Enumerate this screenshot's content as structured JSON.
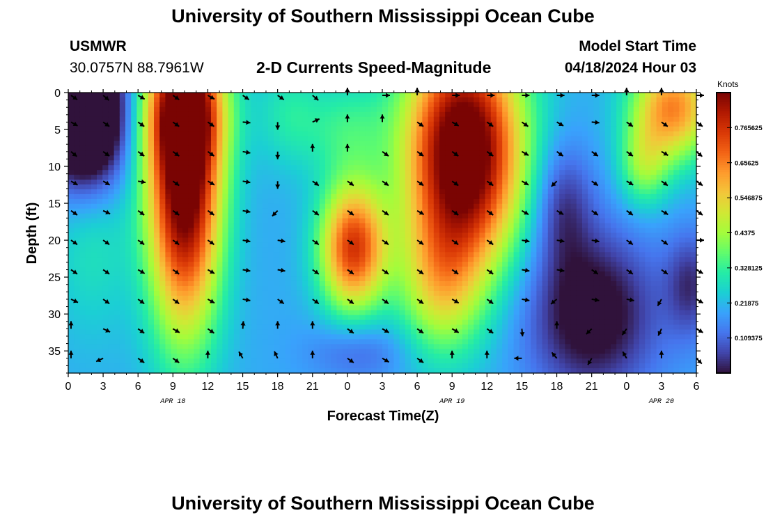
{
  "page": {
    "title": "University of Southern Mississippi Ocean Cube",
    "footer_title": "University of Southern Mississippi Ocean Cube"
  },
  "station": {
    "id": "USMWR",
    "coords": "30.0757N  88.7961W"
  },
  "model": {
    "start_label": "Model Start Time",
    "start_value": "04/18/2024 Hour 03"
  },
  "chart_data": {
    "type": "heatmap",
    "title": "2-D Currents Speed-Magnitude",
    "xlabel": "Forecast Time(Z)",
    "ylabel": "Depth (ft)",
    "x_ticks": [
      "0",
      "3",
      "6",
      "9",
      "12",
      "15",
      "18",
      "21",
      "0",
      "3",
      "6",
      "9",
      "12",
      "15",
      "18",
      "21",
      "0",
      "3",
      "6"
    ],
    "x_dates": [
      {
        "label": "APR 18",
        "hour_index": 9
      },
      {
        "label": "APR 19",
        "hour_index": 33
      },
      {
        "label": "APR 20",
        "hour_index": 51
      }
    ],
    "xlim_hours": [
      0,
      54
    ],
    "ylim_ft": [
      0,
      38
    ],
    "y_ticks": [
      "0",
      "5",
      "10",
      "15",
      "20",
      "25",
      "30",
      "35"
    ],
    "colorbar": {
      "title": "Knots",
      "tick_labels": [
        "0.765625",
        "0.65625",
        "0.546875",
        "0.4375",
        "0.328125",
        "0.21875",
        "0.109375"
      ],
      "tick_values": [
        0.765625,
        0.65625,
        0.546875,
        0.4375,
        0.328125,
        0.21875,
        0.109375
      ],
      "range": [
        0,
        0.875
      ],
      "colors": [
        "#30123b",
        "#4145ab",
        "#4675ed",
        "#39a2fc",
        "#1bcfd4",
        "#24eca6",
        "#61fc6c",
        "#a4fc3b",
        "#d1e834",
        "#f3c63a",
        "#fe9b2d",
        "#f36315",
        "#d93806",
        "#b11901",
        "#7a0403"
      ]
    },
    "speed_hotspots": [
      {
        "hour": 1.5,
        "depth": 3,
        "speed": -0.55,
        "sx": 2.4,
        "sy": 7
      },
      {
        "hour": 10,
        "depth": 12,
        "speed": 0.75,
        "sx": 2.2,
        "sy": 14
      },
      {
        "hour": 10,
        "depth": 2,
        "speed": 0.35,
        "sx": 2.5,
        "sy": 6
      },
      {
        "hour": 2,
        "depth": 18,
        "speed": 0.1,
        "sx": 2.5,
        "sy": 10
      },
      {
        "hour": 19,
        "depth": 3,
        "speed": 0.1,
        "sx": 2,
        "sy": 5
      },
      {
        "hour": 24.5,
        "depth": 21,
        "speed": 0.55,
        "sx": 2,
        "sy": 6
      },
      {
        "hour": 24,
        "depth": 5,
        "speed": 0.12,
        "sx": 2.5,
        "sy": 5
      },
      {
        "hour": 34,
        "depth": 8,
        "speed": 0.8,
        "sx": 3.5,
        "sy": 11
      },
      {
        "hour": 32,
        "depth": 26,
        "speed": 0.25,
        "sx": 2.5,
        "sy": 7
      },
      {
        "hour": 25,
        "depth": 35,
        "speed": -0.1,
        "sx": 3,
        "sy": 3
      },
      {
        "hour": 45,
        "depth": 30,
        "speed": -0.25,
        "sx": 4,
        "sy": 8
      },
      {
        "hour": 42.5,
        "depth": 15,
        "speed": -0.15,
        "sx": 1.8,
        "sy": 6
      },
      {
        "hour": 52,
        "depth": 2,
        "speed": 0.45,
        "sx": 2.5,
        "sy": 5
      },
      {
        "hour": 49.5,
        "depth": 10,
        "speed": 0.2,
        "sx": 1.5,
        "sy": 4
      },
      {
        "hour": 53.5,
        "depth": 26,
        "speed": -0.15,
        "sx": 1.5,
        "sy": 5
      }
    ],
    "base_speed": 0.2,
    "vector_columns_hours": [
      0,
      3,
      6,
      9,
      12,
      15,
      18,
      21,
      24,
      27,
      30,
      33,
      36,
      39,
      42,
      45,
      48,
      51,
      54
    ],
    "vector_rows_ft": [
      0,
      4,
      8,
      12,
      16,
      20,
      24,
      28,
      32,
      36
    ],
    "vector_angles_deg": [
      [
        125,
        130,
        120,
        125,
        120,
        125,
        125,
        130,
        0,
        90,
        0,
        90,
        90,
        90,
        90,
        90,
        0,
        0,
        90
      ],
      [
        120,
        125,
        125,
        125,
        125,
        95,
        180,
        65,
        0,
        0,
        125,
        120,
        125,
        125,
        120,
        95,
        125,
        125,
        125
      ],
      [
        130,
        125,
        125,
        125,
        125,
        100,
        180,
        0,
        0,
        125,
        125,
        125,
        125,
        120,
        125,
        125,
        125,
        120,
        130
      ],
      [
        120,
        120,
        100,
        125,
        120,
        100,
        180,
        125,
        125,
        125,
        125,
        125,
        125,
        120,
        225,
        125,
        120,
        125,
        125
      ],
      [
        125,
        115,
        125,
        125,
        125,
        100,
        225,
        125,
        125,
        125,
        120,
        125,
        125,
        120,
        120,
        125,
        125,
        120,
        125
      ],
      [
        125,
        125,
        125,
        125,
        125,
        100,
        100,
        125,
        125,
        125,
        125,
        125,
        125,
        100,
        100,
        100,
        125,
        125,
        90
      ],
      [
        125,
        125,
        120,
        125,
        120,
        100,
        100,
        125,
        125,
        125,
        125,
        125,
        125,
        100,
        100,
        125,
        125,
        125,
        120
      ],
      [
        115,
        125,
        125,
        125,
        120,
        100,
        125,
        125,
        125,
        125,
        125,
        120,
        125,
        100,
        230,
        100,
        100,
        210,
        120
      ],
      [
        0,
        115,
        125,
        120,
        125,
        5,
        0,
        0,
        125,
        120,
        125,
        120,
        125,
        175,
        0,
        225,
        215,
        205,
        120
      ],
      [
        0,
        245,
        125,
        125,
        0,
        330,
        335,
        0,
        125,
        120,
        125,
        0,
        0,
        270,
        320,
        210,
        330,
        0,
        135
      ]
    ]
  }
}
